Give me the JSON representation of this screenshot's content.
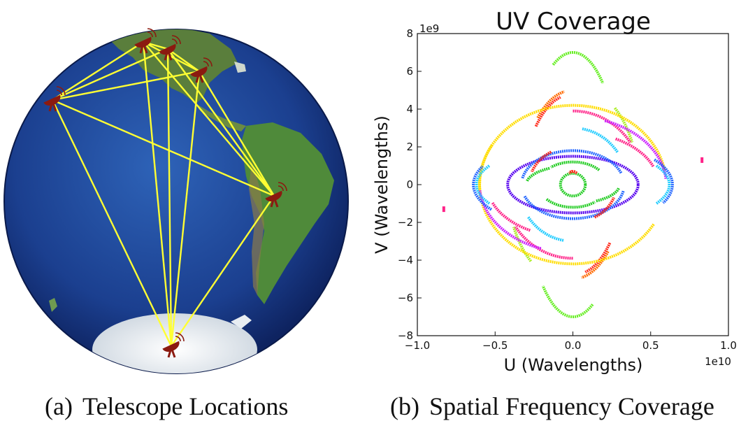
{
  "captions": {
    "a": {
      "tag": "(a)",
      "text": "Telescope Locations"
    },
    "b": {
      "tag": "(b)",
      "text": "Spatial Frequency Coverage"
    }
  },
  "globe": {
    "telescope_count": 6,
    "telescope_icon": "radio-dish-icon",
    "baseline_color": "#ffff33",
    "telescope_color": "#8b1a10",
    "ocean_color": "#1b3f8f",
    "land_color": "#4f8a3a",
    "ice_color": "#eef0f2"
  },
  "chart_data": {
    "type": "scatter",
    "title": "UV Coverage",
    "xlabel": "U (Wavelengths)",
    "ylabel": "V (Wavelengths)",
    "x_scale_note": "1e10",
    "y_scale_note": "1e9",
    "xlim": [
      -1.0,
      1.0
    ],
    "ylim": [
      -8,
      8
    ],
    "xticks": [
      "−1.0",
      "−0.5",
      "0.0",
      "0.5",
      "1.0"
    ],
    "yticks": [
      "−8",
      "−6",
      "−4",
      "−2",
      "0",
      "2",
      "4",
      "6",
      "8"
    ],
    "grid": false,
    "arcs": [
      {
        "color": "#66ee22",
        "cx": 0.0,
        "cy": 0.0,
        "ru": 0.3,
        "rv": 7.0,
        "a0": 115,
        "a1": 50
      },
      {
        "color": "#66ee22",
        "cx": 0.0,
        "cy": 0.0,
        "ru": 0.3,
        "rv": 7.0,
        "a0": 295,
        "a1": 230
      },
      {
        "color": "#ff6a00",
        "cx": 0.0,
        "cy": 0.0,
        "ru": 0.32,
        "rv": 5.0,
        "a0": 135,
        "a1": 100
      },
      {
        "color": "#ff2a1a",
        "cx": 0.0,
        "cy": 0.0,
        "ru": 0.31,
        "rv": 4.8,
        "a0": 140,
        "a1": 105
      },
      {
        "color": "#ff6a00",
        "cx": 0.0,
        "cy": 0.0,
        "ru": 0.32,
        "rv": 5.0,
        "a0": 315,
        "a1": 280
      },
      {
        "color": "#ff2a1a",
        "cx": 0.0,
        "cy": 0.0,
        "ru": 0.31,
        "rv": 4.8,
        "a0": 320,
        "a1": 285
      },
      {
        "color": "#aaee22",
        "cx": 0.0,
        "cy": 0.0,
        "ru": 0.42,
        "rv": 5.3,
        "a0": 50,
        "a1": 25
      },
      {
        "color": "#aaee22",
        "cx": 0.0,
        "cy": 0.0,
        "ru": 0.42,
        "rv": 5.3,
        "a0": 230,
        "a1": 205
      },
      {
        "color": "#ffdd00",
        "cx": 0.0,
        "cy": 0.0,
        "ru": 0.6,
        "rv": 4.2,
        "a0": 150,
        "a1": 190
      },
      {
        "color": "#ffdd00",
        "cx": 0.0,
        "cy": 0.0,
        "ru": 0.6,
        "rv": 4.2,
        "a0": 330,
        "a1": 10
      },
      {
        "color": "#ff2288",
        "cx": 0.0,
        "cy": 0.0,
        "ru": 0.45,
        "rv": 3.9,
        "a0": 90,
        "a1": 35
      },
      {
        "color": "#ff2288",
        "cx": 0.0,
        "cy": 0.0,
        "ru": 0.45,
        "rv": 3.9,
        "a0": 270,
        "a1": 215
      },
      {
        "color": "#cc22ff",
        "cx": 0.0,
        "cy": 0.0,
        "ru": 0.6,
        "rv": 3.6,
        "a0": 70,
        "a1": 5
      },
      {
        "color": "#cc22ff",
        "cx": 0.0,
        "cy": 0.0,
        "ru": 0.6,
        "rv": 3.6,
        "a0": 250,
        "a1": 185
      },
      {
        "color": "#2266ff",
        "cx": 0.0,
        "cy": 0.0,
        "ru": 0.64,
        "rv": 2.3,
        "a0": 35,
        "a1": -25
      },
      {
        "color": "#2266ff",
        "cx": 0.0,
        "cy": 0.0,
        "ru": 0.64,
        "rv": 2.3,
        "a0": 215,
        "a1": 155
      },
      {
        "color": "#22ccff",
        "cx": 0.0,
        "cy": 0.0,
        "ru": 0.62,
        "rv": 2.0,
        "a0": 30,
        "a1": -30
      },
      {
        "color": "#22ccff",
        "cx": 0.0,
        "cy": 0.0,
        "ru": 0.62,
        "rv": 2.0,
        "a0": 210,
        "a1": 150
      },
      {
        "color": "#22ccff",
        "cx": 0.0,
        "cy": 0.0,
        "ru": 0.35,
        "rv": 3.0,
        "a0": 80,
        "a1": 35
      },
      {
        "color": "#22ccff",
        "cx": 0.0,
        "cy": 0.0,
        "ru": 0.35,
        "rv": 3.0,
        "a0": 260,
        "a1": 215
      },
      {
        "color": "#5500ee",
        "cx": 0.0,
        "cy": 0.0,
        "ru": 0.42,
        "rv": 1.5,
        "a0": 0,
        "a1": 360
      },
      {
        "color": "#2266ff",
        "cx": 0.0,
        "cy": 0.0,
        "ru": 0.33,
        "rv": 1.8,
        "a0": 20,
        "a1": 170
      },
      {
        "color": "#2266ff",
        "cx": 0.0,
        "cy": 0.0,
        "ru": 0.33,
        "rv": 1.8,
        "a0": 200,
        "a1": 350
      },
      {
        "color": "#ff2a1a",
        "cx": 0.0,
        "cy": 0.0,
        "ru": 0.28,
        "rv": 2.0,
        "a0": 120,
        "a1": 160
      },
      {
        "color": "#ff2a1a",
        "cx": 0.0,
        "cy": 0.0,
        "ru": 0.28,
        "rv": 2.0,
        "a0": 300,
        "a1": 340
      },
      {
        "color": "#22cc22",
        "cx": 0.0,
        "cy": 0.0,
        "ru": 0.22,
        "rv": 1.2,
        "a0": 40,
        "a1": 130
      },
      {
        "color": "#22cc22",
        "cx": 0.0,
        "cy": 0.0,
        "ru": 0.22,
        "rv": 1.2,
        "a0": 220,
        "a1": 310
      },
      {
        "color": "#22cc22",
        "cx": 0.0,
        "cy": 0.0,
        "ru": 0.3,
        "rv": 1.0,
        "a0": 120,
        "a1": 170
      },
      {
        "color": "#22cc22",
        "cx": 0.0,
        "cy": 0.0,
        "ru": 0.3,
        "rv": 1.0,
        "a0": 300,
        "a1": 350
      },
      {
        "color": "#ff2288",
        "cx": 0.0,
        "cy": 0.0,
        "ru": 0.55,
        "rv": 2.8,
        "a0": 60,
        "a1": 20
      },
      {
        "color": "#ff2288",
        "cx": 0.0,
        "cy": 0.0,
        "ru": 0.55,
        "rv": 2.8,
        "a0": 240,
        "a1": 200
      },
      {
        "color": "#22cc22",
        "cx": 0.0,
        "cy": 0.0,
        "ru": 0.08,
        "rv": 0.6,
        "a0": 0,
        "a1": 360
      },
      {
        "color": "#ff2a1a",
        "cx": 0.0,
        "cy": 0.0,
        "ru": 0.05,
        "rv": 0.7,
        "a0": 60,
        "a1": 120
      }
    ],
    "points": [
      {
        "color": "#ff2288",
        "u": -0.83,
        "v": -1.3
      },
      {
        "color": "#ff2288",
        "u": 0.83,
        "v": 1.3
      }
    ]
  }
}
